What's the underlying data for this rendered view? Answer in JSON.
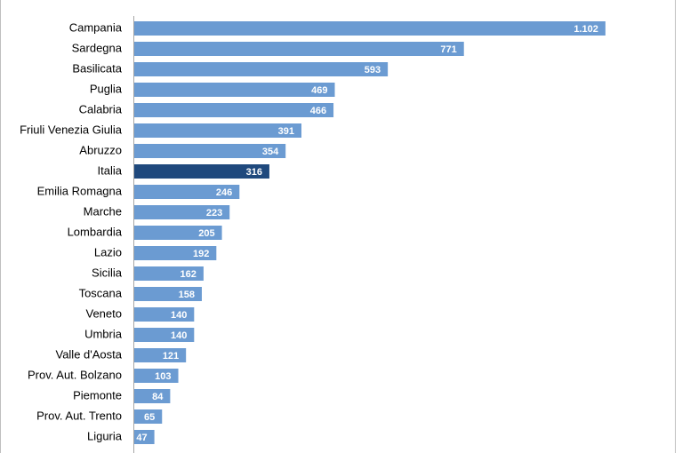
{
  "chart_data": {
    "type": "bar",
    "orientation": "horizontal",
    "categories": [
      "Campania",
      "Sardegna",
      "Basilicata",
      "Puglia",
      "Calabria",
      "Friuli Venezia Giulia",
      "Abruzzo",
      "Italia",
      "Emilia Romagna",
      "Marche",
      "Lombardia",
      "Lazio",
      "Sicilia",
      "Toscana",
      "Veneto",
      "Umbria",
      "Valle d'Aosta",
      "Prov. Aut. Bolzano",
      "Piemonte",
      "Prov. Aut. Trento",
      "Liguria"
    ],
    "values": [
      1102,
      771,
      593,
      469,
      466,
      391,
      354,
      316,
      246,
      223,
      205,
      192,
      162,
      158,
      140,
      140,
      121,
      103,
      84,
      65,
      47
    ],
    "value_labels": [
      "1.102",
      "771",
      "593",
      "469",
      "466",
      "391",
      "354",
      "316",
      "246",
      "223",
      "205",
      "192",
      "162",
      "158",
      "140",
      "140",
      "121",
      "103",
      "84",
      "65",
      "47"
    ],
    "colors": [
      "#6b9bd2",
      "#6b9bd2",
      "#6b9bd2",
      "#6b9bd2",
      "#6b9bd2",
      "#6b9bd2",
      "#6b9bd2",
      "#1f497d",
      "#6b9bd2",
      "#6b9bd2",
      "#6b9bd2",
      "#6b9bd2",
      "#6b9bd2",
      "#6b9bd2",
      "#6b9bd2",
      "#6b9bd2",
      "#6b9bd2",
      "#6b9bd2",
      "#6b9bd2",
      "#6b9bd2",
      "#6b9bd2"
    ],
    "xlim": [
      0,
      1200
    ]
  }
}
